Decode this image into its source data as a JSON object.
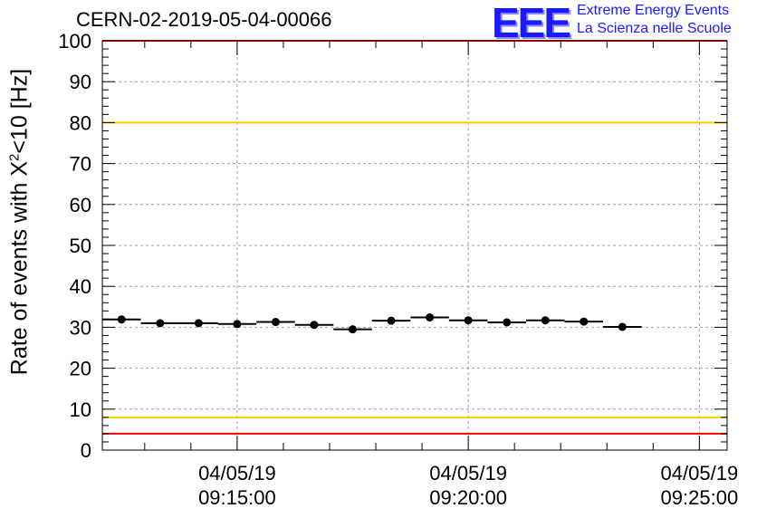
{
  "chart_data": {
    "type": "scatter",
    "title": "CERN-02-2019-05-04-00066",
    "ylabel": {
      "prefix": "Rate of events with X",
      "sup": "2",
      "suffix": "<10 [Hz]"
    },
    "xlabel": "",
    "x_range": [
      "04/05/19 09:12:05",
      "04/05/19 09:25:36"
    ],
    "ylim": [
      0,
      100
    ],
    "yticks": [
      0,
      10,
      20,
      30,
      40,
      50,
      60,
      70,
      80,
      90,
      100
    ],
    "xticks": [
      {
        "time": "04/05/19 09:15:00",
        "date": "04/05/19",
        "clock": "09:15:00"
      },
      {
        "time": "04/05/19 09:20:00",
        "date": "04/05/19",
        "clock": "09:20:00"
      },
      {
        "time": "04/05/19 09:25:00",
        "date": "04/05/19",
        "clock": "09:25:00"
      }
    ],
    "grid": true,
    "bin_seconds": 50,
    "series": [
      {
        "marker": "circle",
        "color": "#000000",
        "points": [
          {
            "x": "04/05/19 09:12:30",
            "y": 31.9
          },
          {
            "x": "04/05/19 09:13:20",
            "y": 31.0
          },
          {
            "x": "04/05/19 09:14:10",
            "y": 31.0
          },
          {
            "x": "04/05/19 09:15:00",
            "y": 30.8
          },
          {
            "x": "04/05/19 09:15:50",
            "y": 31.3
          },
          {
            "x": "04/05/19 09:16:40",
            "y": 30.6
          },
          {
            "x": "04/05/19 09:17:30",
            "y": 29.5
          },
          {
            "x": "04/05/19 09:18:20",
            "y": 31.6
          },
          {
            "x": "04/05/19 09:19:10",
            "y": 32.4
          },
          {
            "x": "04/05/19 09:20:00",
            "y": 31.7
          },
          {
            "x": "04/05/19 09:20:50",
            "y": 31.2
          },
          {
            "x": "04/05/19 09:21:40",
            "y": 31.7
          },
          {
            "x": "04/05/19 09:22:30",
            "y": 31.4
          },
          {
            "x": "04/05/19 09:23:20",
            "y": 30.1
          }
        ]
      }
    ],
    "reference_lines": [
      {
        "y": 100,
        "color": "#ff0000"
      },
      {
        "y": 80,
        "color": "#ffcc00"
      },
      {
        "y": 8,
        "color": "#ffcc00"
      },
      {
        "y": 4,
        "color": "#ff0000"
      }
    ]
  },
  "logo": {
    "text": "EEE",
    "line1": "Extreme Energy Events",
    "line2": "La Scienza nelle Scuole",
    "color": "#1a1aff"
  }
}
